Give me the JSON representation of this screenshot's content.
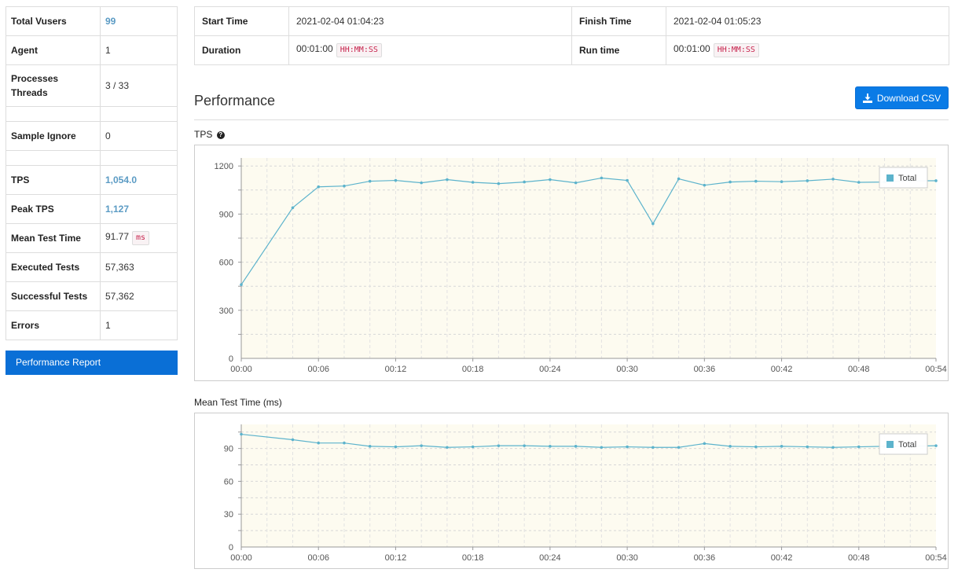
{
  "summary": {
    "total_vusers_label": "Total Vusers",
    "total_vusers": "99",
    "agent_label": "Agent",
    "agent": "1",
    "processes_label": "Processes",
    "threads_label": "Threads",
    "processes_threads": "3 / 33",
    "sample_ignore_label": "Sample Ignore",
    "sample_ignore": "0",
    "tps_label": "TPS",
    "tps": "1,054.0",
    "peak_tps_label": "Peak TPS",
    "peak_tps": "1,127",
    "mean_test_time_label": "Mean Test Time",
    "mean_test_time": "91.77",
    "mean_test_time_unit": "ms",
    "executed_tests_label": "Executed Tests",
    "executed_tests": "57,363",
    "successful_tests_label": "Successful Tests",
    "successful_tests": "57,362",
    "errors_label": "Errors",
    "errors": "1"
  },
  "report_button": "Performance Report",
  "times": {
    "start_label": "Start Time",
    "start": "2021-02-04 01:04:23",
    "finish_label": "Finish Time",
    "finish": "2021-02-04 01:05:23",
    "duration_label": "Duration",
    "duration": "00:01:00",
    "duration_unit": "HH:MM:SS",
    "runtime_label": "Run time",
    "runtime": "00:01:00",
    "runtime_unit": "HH:MM:SS"
  },
  "performance_title": "Performance",
  "download_button": "Download CSV",
  "icons": {
    "download": "download-icon",
    "help": "question-circle-icon"
  },
  "colors": {
    "line": "#5cb3cc",
    "plot_bg": "#fdfbf0",
    "button": "#0a7be6",
    "highlight": "#5b9bc4"
  },
  "tps_label": "TPS",
  "mtt_label": "Mean Test Time (ms)",
  "chart_data": [
    {
      "type": "line",
      "title": "TPS",
      "x": [
        "00:00",
        "00:04",
        "00:06",
        "00:08",
        "00:10",
        "00:12",
        "00:14",
        "00:16",
        "00:18",
        "00:20",
        "00:22",
        "00:24",
        "00:26",
        "00:28",
        "00:30",
        "00:32",
        "00:34",
        "00:36",
        "00:38",
        "00:40",
        "00:42",
        "00:44",
        "00:46",
        "00:48",
        "00:50",
        "00:52",
        "00:54"
      ],
      "series": [
        {
          "name": "Total",
          "values": [
            460,
            940,
            1070,
            1075,
            1105,
            1110,
            1095,
            1115,
            1098,
            1090,
            1100,
            1115,
            1095,
            1125,
            1110,
            840,
            1120,
            1080,
            1100,
            1105,
            1102,
            1108,
            1118,
            1098,
            1100,
            1108,
            1108
          ]
        }
      ],
      "xticks": [
        "00:00",
        "00:06",
        "00:12",
        "00:18",
        "00:24",
        "00:30",
        "00:36",
        "00:42",
        "00:48",
        "00:54"
      ],
      "yticks": [
        0,
        300,
        600,
        900,
        1200
      ],
      "xlim": [
        0,
        54
      ],
      "ylim": [
        0,
        1250
      ],
      "grid": true,
      "legend": "top-right"
    },
    {
      "type": "line",
      "title": "Mean Test Time (ms)",
      "x": [
        "00:00",
        "00:04",
        "00:06",
        "00:08",
        "00:10",
        "00:12",
        "00:14",
        "00:16",
        "00:18",
        "00:20",
        "00:22",
        "00:24",
        "00:26",
        "00:28",
        "00:30",
        "00:32",
        "00:34",
        "00:36",
        "00:38",
        "00:40",
        "00:42",
        "00:44",
        "00:46",
        "00:48",
        "00:50",
        "00:52",
        "00:54"
      ],
      "series": [
        {
          "name": "Total",
          "values": [
            103,
            98,
            95,
            95,
            92,
            91.5,
            92.5,
            91,
            91.5,
            92.5,
            92.5,
            92,
            92,
            91,
            91.5,
            91,
            91,
            94.5,
            92,
            91.5,
            92,
            91.5,
            91,
            91.5,
            92,
            92,
            92.5
          ]
        }
      ],
      "xticks": [
        "00:00",
        "00:06",
        "00:12",
        "00:18",
        "00:24",
        "00:30",
        "00:36",
        "00:42",
        "00:48",
        "00:54"
      ],
      "yticks": [
        0,
        30,
        60,
        90
      ],
      "xlim": [
        0,
        54
      ],
      "ylim": [
        0,
        112
      ],
      "grid": true,
      "legend": "top-right"
    }
  ]
}
